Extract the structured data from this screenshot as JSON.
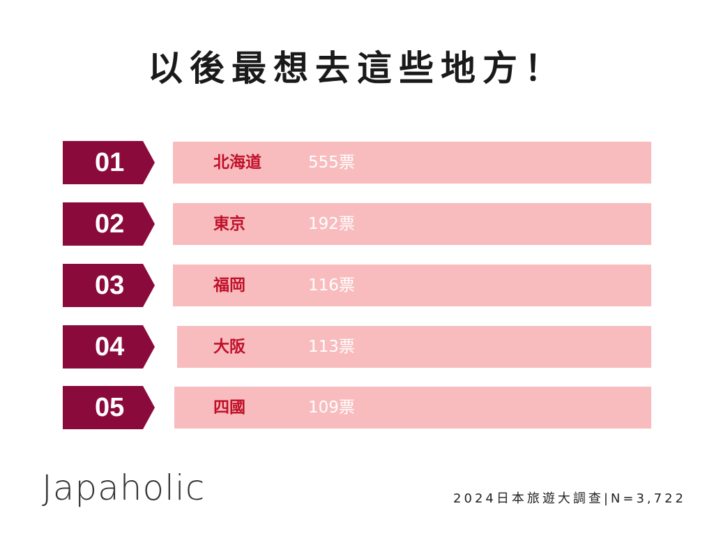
{
  "title": "以後最想去這些地方！",
  "chart_data": {
    "type": "bar",
    "title": "以後最想去這些地方！",
    "categories": [
      "北海道",
      "東京",
      "福岡",
      "大阪",
      "四國"
    ],
    "ranks": [
      "01",
      "02",
      "03",
      "04",
      "05"
    ],
    "values": [
      555,
      192,
      116,
      113,
      109
    ],
    "value_labels": [
      "555票",
      "192票",
      "116票",
      "113票",
      "109票"
    ],
    "unit": "票"
  },
  "brand": {
    "logo_text": "Japaholic"
  },
  "footer": {
    "source_text": "2024日本旅遊大調查|N=3,722"
  },
  "colors": {
    "rank_tab": "#8b0a3c",
    "bar": "#f8bcbe",
    "city_text": "#c0102a",
    "value_text": "#ffffff"
  }
}
